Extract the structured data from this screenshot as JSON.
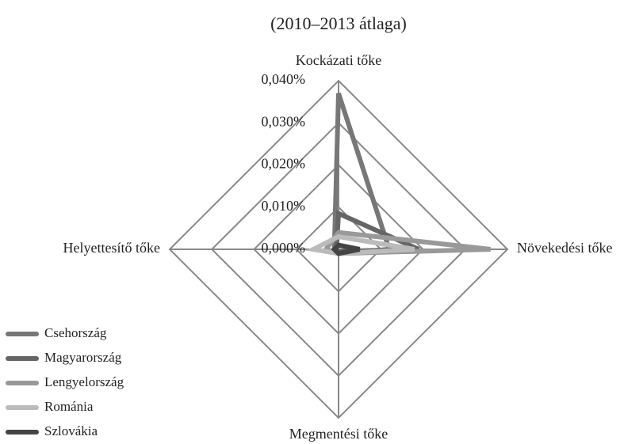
{
  "chart_data": {
    "type": "radar",
    "title": "(2010–2013 átlaga)",
    "categories": [
      "Kockázati tőke",
      "Növekedési tőke",
      "Megmentési tőke",
      "Helyettesítő tőke"
    ],
    "rlim": [
      0,
      0.04
    ],
    "rticks": [
      {
        "value": 0,
        "label": "0,000%"
      },
      {
        "value": 0.01,
        "label": "0,010%"
      },
      {
        "value": 0.02,
        "label": "0,020%"
      },
      {
        "value": 0.03,
        "label": "0,030%"
      },
      {
        "value": 0.04,
        "label": "0,040%"
      }
    ],
    "grid": true,
    "legend": "lower left",
    "series": [
      {
        "name": "Csehország",
        "color": "#777777",
        "values": [
          0.037,
          0.012,
          0.001,
          0.001
        ]
      },
      {
        "name": "Magyarország",
        "color": "#666666",
        "values": [
          0.0085,
          0.019,
          0.0005,
          0.0005
        ]
      },
      {
        "name": "Lengyelország",
        "color": "#999999",
        "values": [
          0.004,
          0.036,
          0.001,
          0.003
        ]
      },
      {
        "name": "Románia",
        "color": "#bbbbbb",
        "values": [
          0.003,
          0.018,
          0.001,
          0.006
        ]
      },
      {
        "name": "Szlovákia",
        "color": "#444444",
        "values": [
          0.001,
          0.005,
          0.001,
          0.001
        ]
      }
    ]
  }
}
